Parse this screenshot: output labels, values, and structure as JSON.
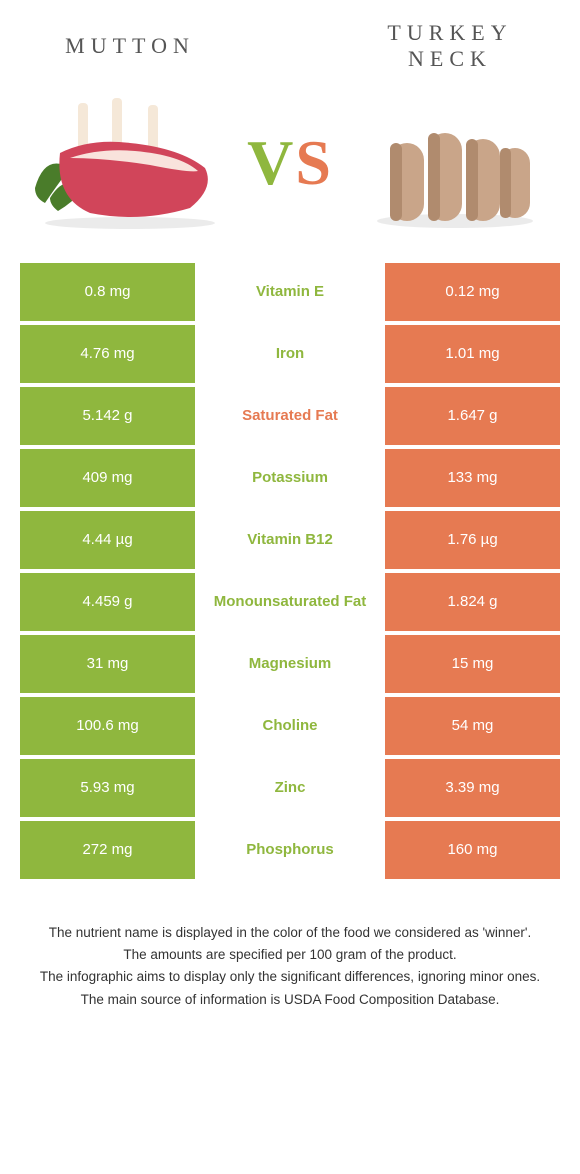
{
  "header": {
    "left_title": "MUTTON",
    "right_title": "TURKEY NECK",
    "vs_text": "VS"
  },
  "colors": {
    "left": "#8fb73e",
    "right": "#e67a52",
    "vs_v": "#8fb73e",
    "vs_s": "#e67a52"
  },
  "rows": [
    {
      "left": "0.8 mg",
      "label": "Vitamin E",
      "right": "0.12 mg",
      "winner": "left"
    },
    {
      "left": "4.76 mg",
      "label": "Iron",
      "right": "1.01 mg",
      "winner": "left"
    },
    {
      "left": "5.142 g",
      "label": "Saturated Fat",
      "right": "1.647 g",
      "winner": "right"
    },
    {
      "left": "409 mg",
      "label": "Potassium",
      "right": "133 mg",
      "winner": "left"
    },
    {
      "left": "4.44 µg",
      "label": "Vitamin B12",
      "right": "1.76 µg",
      "winner": "left"
    },
    {
      "left": "4.459 g",
      "label": "Monounsaturated Fat",
      "right": "1.824 g",
      "winner": "left"
    },
    {
      "left": "31 mg",
      "label": "Magnesium",
      "right": "15 mg",
      "winner": "left"
    },
    {
      "left": "100.6 mg",
      "label": "Choline",
      "right": "54 mg",
      "winner": "left"
    },
    {
      "left": "5.93 mg",
      "label": "Zinc",
      "right": "3.39 mg",
      "winner": "left"
    },
    {
      "left": "272 mg",
      "label": "Phosphorus",
      "right": "160 mg",
      "winner": "left"
    }
  ],
  "footer": {
    "line1": "The nutrient name is displayed in the color of the food we considered as 'winner'.",
    "line2": "The amounts are specified per 100 gram of the product.",
    "line3": "The infographic aims to display only the significant differences, ignoring minor ones.",
    "line4": "The main source of information is USDA Food Composition Database."
  }
}
